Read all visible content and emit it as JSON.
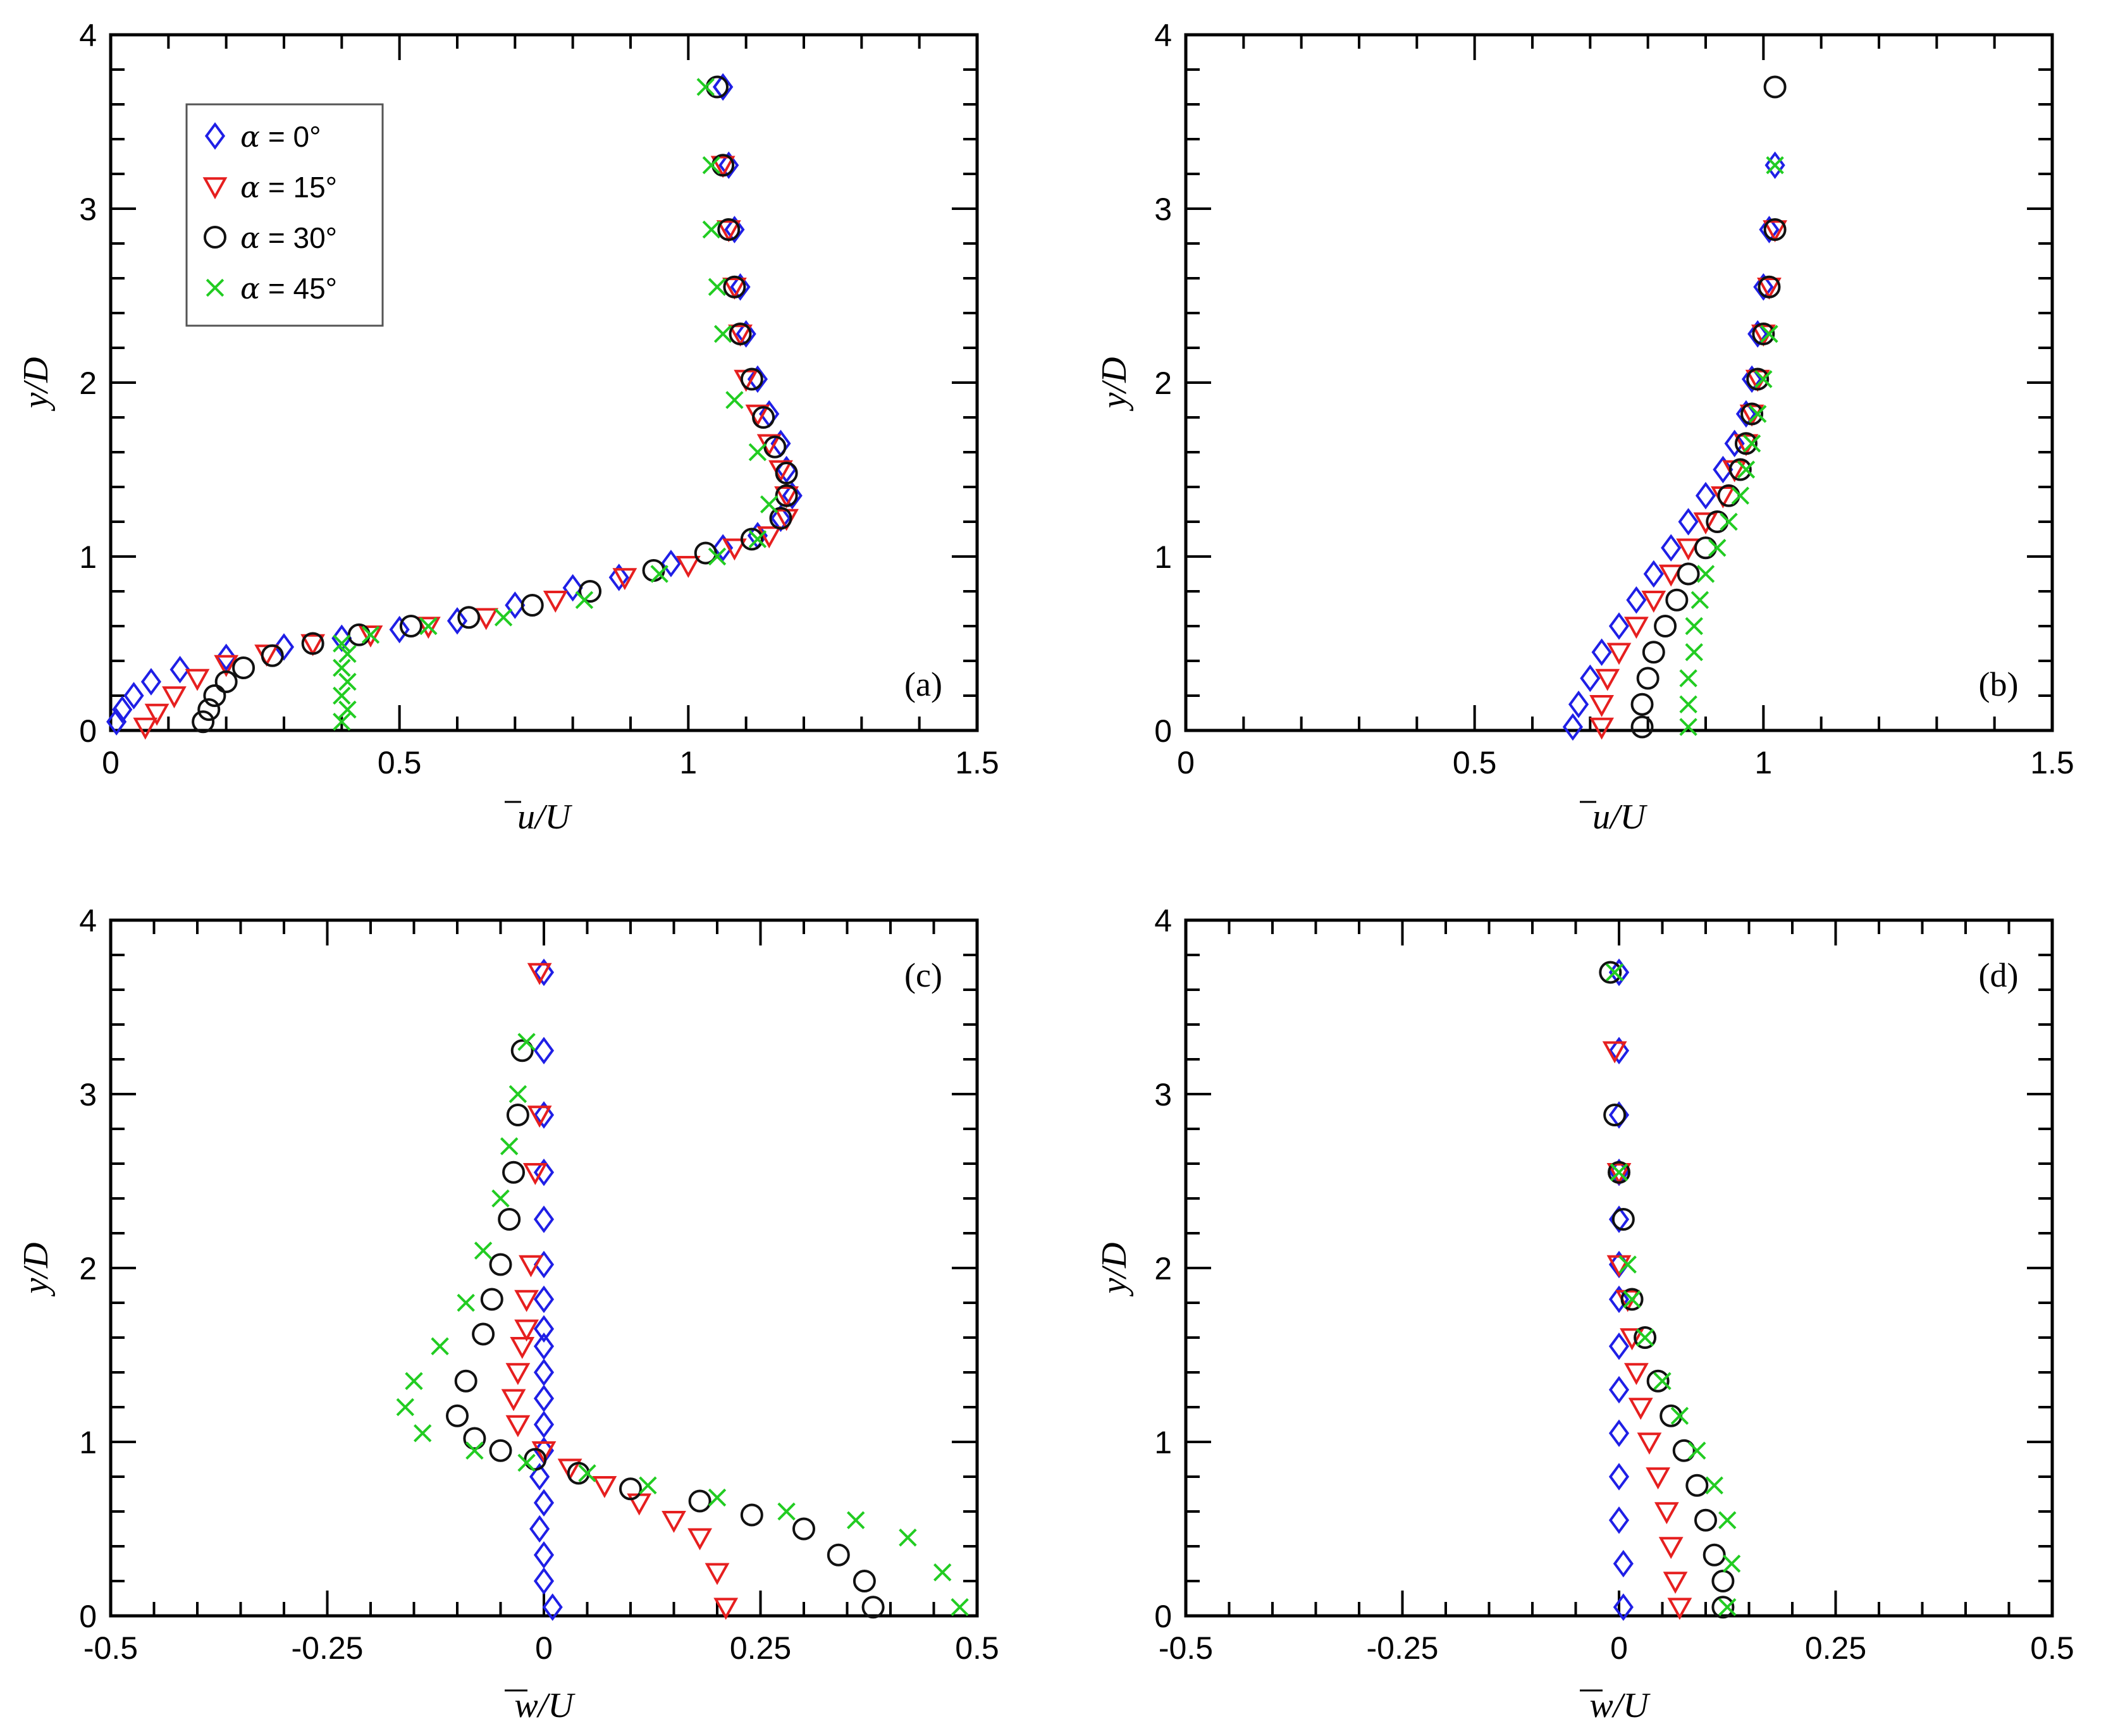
{
  "figure": {
    "panels": 4
  },
  "legend": {
    "entries": [
      {
        "series": "a0",
        "alpha": "α",
        "rest": " = 0°"
      },
      {
        "series": "a15",
        "alpha": "α",
        "rest": " = 15°"
      },
      {
        "series": "a30",
        "alpha": "α",
        "rest": " = 30°"
      },
      {
        "series": "a45",
        "alpha": "α",
        "rest": " = 45°"
      }
    ]
  },
  "series_style": {
    "a0": {
      "name": "α = 0°",
      "marker": "diamond",
      "color": "#1f1fe6"
    },
    "a15": {
      "name": "α = 15°",
      "marker": "triangle",
      "color": "#e61f1f"
    },
    "a30": {
      "name": "α = 30°",
      "marker": "circle",
      "color": "#111111"
    },
    "a45": {
      "name": "α = 45°",
      "marker": "cross",
      "color": "#22cc22"
    }
  },
  "chart_data": [
    {
      "id": "a",
      "type": "scatter",
      "tag": "(a)",
      "legend_location": "top-left",
      "xlim": [
        0,
        1.5
      ],
      "ylim": [
        0,
        4
      ],
      "xticks": [
        "0",
        "0.5",
        "1",
        "1.5"
      ],
      "yticks": [
        "0",
        "1",
        "2",
        "3",
        "4"
      ],
      "xlabel_base": "u",
      "xlabel_tail": "/U",
      "ylabel": "y/D",
      "series": [
        {
          "key": "a0",
          "x": [
            0.01,
            0.02,
            0.04,
            0.07,
            0.12,
            0.2,
            0.3,
            0.4,
            0.5,
            0.6,
            0.7,
            0.8,
            0.88,
            0.97,
            1.06,
            1.12,
            1.16,
            1.18,
            1.17,
            1.16,
            1.14,
            1.12,
            1.1,
            1.09,
            1.08,
            1.07,
            1.06,
            1.06
          ],
          "y": [
            0.05,
            0.12,
            0.2,
            0.28,
            0.35,
            0.42,
            0.48,
            0.53,
            0.58,
            0.63,
            0.72,
            0.82,
            0.88,
            0.96,
            1.05,
            1.12,
            1.22,
            1.35,
            1.5,
            1.65,
            1.82,
            2.02,
            2.28,
            2.55,
            2.88,
            3.25,
            3.7,
            3.7
          ]
        },
        {
          "key": "a15",
          "x": [
            0.06,
            0.08,
            0.11,
            0.15,
            0.2,
            0.27,
            0.35,
            0.45,
            0.55,
            0.65,
            0.77,
            0.89,
            1.0,
            1.08,
            1.14,
            1.17,
            1.17,
            1.16,
            1.14,
            1.12,
            1.1,
            1.09,
            1.08,
            1.07,
            1.06
          ],
          "y": [
            0.02,
            0.1,
            0.2,
            0.3,
            0.38,
            0.44,
            0.5,
            0.55,
            0.6,
            0.65,
            0.75,
            0.88,
            0.95,
            1.05,
            1.12,
            1.22,
            1.35,
            1.5,
            1.65,
            1.82,
            2.02,
            2.28,
            2.55,
            2.88,
            3.25
          ]
        },
        {
          "key": "a30",
          "x": [
            0.16,
            0.17,
            0.18,
            0.2,
            0.23,
            0.28,
            0.35,
            0.43,
            0.52,
            0.62,
            0.73,
            0.83,
            0.94,
            1.03,
            1.11,
            1.16,
            1.17,
            1.17,
            1.15,
            1.13,
            1.11,
            1.09,
            1.08,
            1.07,
            1.06,
            1.05
          ],
          "y": [
            0.05,
            0.12,
            0.2,
            0.28,
            0.36,
            0.43,
            0.5,
            0.55,
            0.6,
            0.65,
            0.72,
            0.8,
            0.92,
            1.02,
            1.1,
            1.22,
            1.35,
            1.48,
            1.63,
            1.8,
            2.02,
            2.28,
            2.55,
            2.88,
            3.25,
            3.7
          ]
        },
        {
          "key": "a45",
          "x": [
            0.4,
            0.41,
            0.4,
            0.41,
            0.4,
            0.41,
            0.4,
            0.45,
            0.55,
            0.68,
            0.82,
            0.95,
            1.05,
            1.12,
            1.14,
            1.12,
            1.08,
            1.06,
            1.05,
            1.04,
            1.04,
            1.03
          ],
          "y": [
            0.05,
            0.12,
            0.2,
            0.28,
            0.36,
            0.44,
            0.5,
            0.55,
            0.6,
            0.65,
            0.75,
            0.9,
            1.0,
            1.1,
            1.3,
            1.6,
            1.9,
            2.28,
            2.55,
            2.88,
            3.25,
            3.7
          ]
        }
      ]
    },
    {
      "id": "b",
      "type": "scatter",
      "tag": "(b)",
      "xlim": [
        0,
        1.5
      ],
      "ylim": [
        0,
        4
      ],
      "xticks": [
        "0",
        "0.5",
        "1",
        "1.5"
      ],
      "yticks": [
        "0",
        "1",
        "2",
        "3",
        "4"
      ],
      "xlabel_base": "u",
      "xlabel_tail": "/U",
      "ylabel": "y/D",
      "series": [
        {
          "key": "a0",
          "x": [
            0.67,
            0.68,
            0.7,
            0.72,
            0.75,
            0.78,
            0.81,
            0.84,
            0.87,
            0.9,
            0.93,
            0.95,
            0.97,
            0.98,
            0.99,
            1.0,
            1.01,
            1.02
          ],
          "y": [
            0.02,
            0.15,
            0.3,
            0.45,
            0.6,
            0.75,
            0.9,
            1.05,
            1.2,
            1.35,
            1.5,
            1.65,
            1.82,
            2.02,
            2.28,
            2.55,
            2.88,
            3.25
          ]
        },
        {
          "key": "a15",
          "x": [
            0.72,
            0.72,
            0.73,
            0.75,
            0.78,
            0.81,
            0.84,
            0.87,
            0.9,
            0.93,
            0.95,
            0.97,
            0.98,
            0.99,
            1.0,
            1.01,
            1.02
          ],
          "y": [
            0.02,
            0.15,
            0.3,
            0.45,
            0.6,
            0.75,
            0.9,
            1.05,
            1.2,
            1.35,
            1.5,
            1.65,
            1.82,
            2.02,
            2.28,
            2.55,
            2.88
          ]
        },
        {
          "key": "a30",
          "x": [
            0.79,
            0.79,
            0.8,
            0.81,
            0.83,
            0.85,
            0.87,
            0.9,
            0.92,
            0.94,
            0.96,
            0.97,
            0.98,
            0.99,
            1.0,
            1.01,
            1.02,
            1.02
          ],
          "y": [
            0.02,
            0.15,
            0.3,
            0.45,
            0.6,
            0.75,
            0.9,
            1.05,
            1.2,
            1.35,
            1.5,
            1.65,
            1.82,
            2.02,
            2.28,
            2.55,
            2.88,
            3.7
          ]
        },
        {
          "key": "a45",
          "x": [
            0.87,
            0.87,
            0.87,
            0.88,
            0.88,
            0.89,
            0.9,
            0.92,
            0.94,
            0.96,
            0.97,
            0.98,
            0.99,
            1.0,
            1.01,
            1.02
          ],
          "y": [
            0.02,
            0.15,
            0.3,
            0.45,
            0.6,
            0.75,
            0.9,
            1.05,
            1.2,
            1.35,
            1.5,
            1.65,
            1.82,
            2.02,
            2.28,
            3.25
          ]
        }
      ]
    },
    {
      "id": "c",
      "type": "scatter",
      "tag": "(c)",
      "xlim": [
        -0.5,
        0.5
      ],
      "ylim": [
        0,
        4
      ],
      "xticks": [
        "-0.5",
        "-0.25",
        "0",
        "0.25",
        "0.5"
      ],
      "yticks": [
        "0",
        "1",
        "2",
        "3",
        "4"
      ],
      "xlabel_base": "w",
      "xlabel_tail": "/U",
      "ylabel": "y/D",
      "series": [
        {
          "key": "a0",
          "x": [
            0.01,
            0.0,
            0.0,
            -0.005,
            0.0,
            -0.005,
            0.0,
            0.0,
            0.0,
            0.0,
            0.0,
            0.0,
            0.0,
            0.0,
            0.0,
            0.0,
            0.0,
            0.0,
            0.0
          ],
          "y": [
            0.05,
            0.2,
            0.35,
            0.5,
            0.65,
            0.8,
            0.95,
            1.1,
            1.25,
            1.4,
            1.55,
            1.65,
            1.82,
            2.02,
            2.28,
            2.55,
            2.88,
            3.25,
            3.7
          ]
        },
        {
          "key": "a15",
          "x": [
            0.21,
            0.2,
            0.18,
            0.15,
            0.11,
            0.07,
            0.03,
            0.0,
            -0.03,
            -0.035,
            -0.03,
            -0.025,
            -0.02,
            -0.02,
            -0.015,
            -0.01,
            -0.005,
            -0.005
          ],
          "y": [
            0.05,
            0.25,
            0.45,
            0.55,
            0.65,
            0.75,
            0.85,
            0.95,
            1.1,
            1.25,
            1.4,
            1.55,
            1.65,
            1.82,
            2.02,
            2.55,
            2.88,
            3.7
          ]
        },
        {
          "key": "a30",
          "x": [
            0.38,
            0.37,
            0.34,
            0.3,
            0.24,
            0.18,
            0.1,
            0.04,
            -0.01,
            -0.05,
            -0.08,
            -0.1,
            -0.09,
            -0.07,
            -0.06,
            -0.05,
            -0.04,
            -0.035,
            -0.03,
            -0.025
          ],
          "y": [
            0.05,
            0.2,
            0.35,
            0.5,
            0.58,
            0.66,
            0.73,
            0.82,
            0.9,
            0.95,
            1.02,
            1.15,
            1.35,
            1.62,
            1.82,
            2.02,
            2.28,
            2.55,
            2.88,
            3.25
          ]
        },
        {
          "key": "a45",
          "x": [
            0.48,
            0.46,
            0.42,
            0.36,
            0.28,
            0.2,
            0.12,
            0.05,
            -0.02,
            -0.08,
            -0.14,
            -0.16,
            -0.15,
            -0.12,
            -0.09,
            -0.07,
            -0.05,
            -0.04,
            -0.03,
            -0.02
          ],
          "y": [
            0.05,
            0.25,
            0.45,
            0.55,
            0.6,
            0.68,
            0.75,
            0.82,
            0.88,
            0.95,
            1.05,
            1.2,
            1.35,
            1.55,
            1.8,
            2.1,
            2.4,
            2.7,
            3.0,
            3.3
          ]
        }
      ]
    },
    {
      "id": "d",
      "type": "scatter",
      "tag": "(d)",
      "xlim": [
        -0.5,
        0.5
      ],
      "ylim": [
        0,
        4
      ],
      "xticks": [
        "-0.5",
        "-0.25",
        "0",
        "0.25",
        "0.5"
      ],
      "yticks": [
        "0",
        "1",
        "2",
        "3",
        "4"
      ],
      "xlabel_base": "w",
      "xlabel_tail": "/U",
      "ylabel": "y/D",
      "series": [
        {
          "key": "a0",
          "x": [
            0.005,
            0.005,
            0.0,
            0.0,
            0.0,
            0.0,
            0.0,
            0.0,
            0.0,
            0.0,
            0.0,
            0.0,
            0.0,
            0.0,
            0.0
          ],
          "y": [
            0.05,
            0.3,
            0.55,
            0.8,
            1.05,
            1.3,
            1.55,
            1.82,
            2.02,
            2.28,
            2.55,
            2.88,
            3.25,
            3.7,
            3.7
          ]
        },
        {
          "key": "a15",
          "x": [
            0.07,
            0.065,
            0.06,
            0.055,
            0.045,
            0.035,
            0.025,
            0.02,
            0.015,
            0.01,
            0.0,
            0.0,
            -0.005
          ],
          "y": [
            0.05,
            0.2,
            0.4,
            0.6,
            0.8,
            1.0,
            1.2,
            1.4,
            1.6,
            1.82,
            2.02,
            2.55,
            3.25
          ]
        },
        {
          "key": "a30",
          "x": [
            0.12,
            0.12,
            0.11,
            0.1,
            0.09,
            0.075,
            0.06,
            0.045,
            0.03,
            0.015,
            0.005,
            0.0,
            -0.005,
            -0.01
          ],
          "y": [
            0.05,
            0.2,
            0.35,
            0.55,
            0.75,
            0.95,
            1.15,
            1.35,
            1.6,
            1.82,
            2.28,
            2.55,
            2.88,
            3.7
          ]
        },
        {
          "key": "a45",
          "x": [
            0.125,
            0.13,
            0.125,
            0.11,
            0.09,
            0.07,
            0.05,
            0.03,
            0.015,
            0.01,
            0.0,
            -0.005
          ],
          "y": [
            0.05,
            0.3,
            0.55,
            0.75,
            0.95,
            1.15,
            1.35,
            1.6,
            1.82,
            2.02,
            2.55,
            3.7
          ]
        }
      ]
    }
  ]
}
